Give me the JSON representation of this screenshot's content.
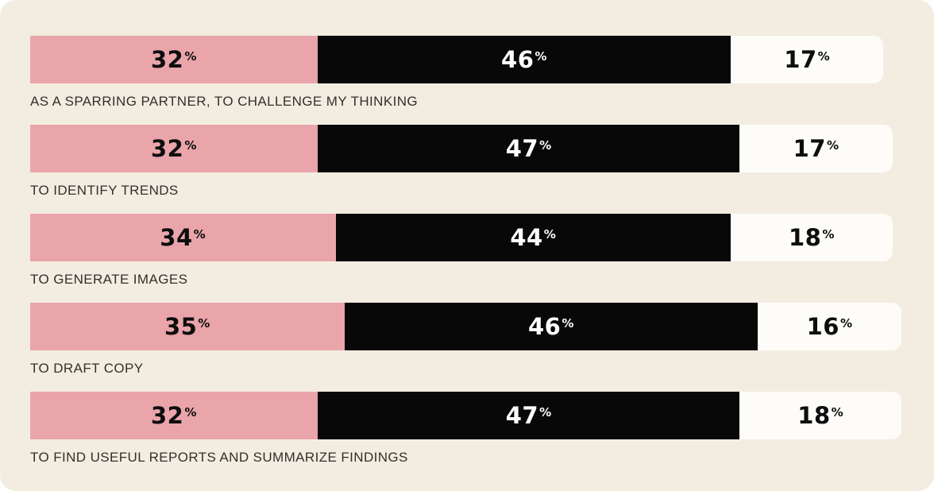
{
  "chart_data": {
    "type": "bar",
    "subtype": "horizontal-stacked",
    "unit": "%",
    "title": "",
    "legend": "none",
    "axis_max": 100,
    "value_labels": "inside-center",
    "background_color": "#F3EDE1",
    "categories": [
      "AS A SPARRING PARTNER, TO CHALLENGE MY THINKING",
      "TO IDENTIFY TRENDS",
      "TO GENERATE IMAGES",
      "TO DRAFT COPY",
      "TO FIND USEFUL REPORTS AND SUMMARIZE FINDINGS"
    ],
    "series": [
      {
        "name": "segment-1",
        "color": "#E9A5AA",
        "label_color": "#0D0D0D",
        "values": [
          32,
          32,
          34,
          35,
          32
        ]
      },
      {
        "name": "segment-2",
        "color": "#080808",
        "label_color": "#FDFCF9",
        "values": [
          46,
          47,
          44,
          46,
          47
        ]
      },
      {
        "name": "segment-3",
        "color": "#FDFCF9",
        "label_color": "#0D0D0D",
        "values": [
          17,
          17,
          18,
          16,
          18
        ]
      }
    ]
  }
}
